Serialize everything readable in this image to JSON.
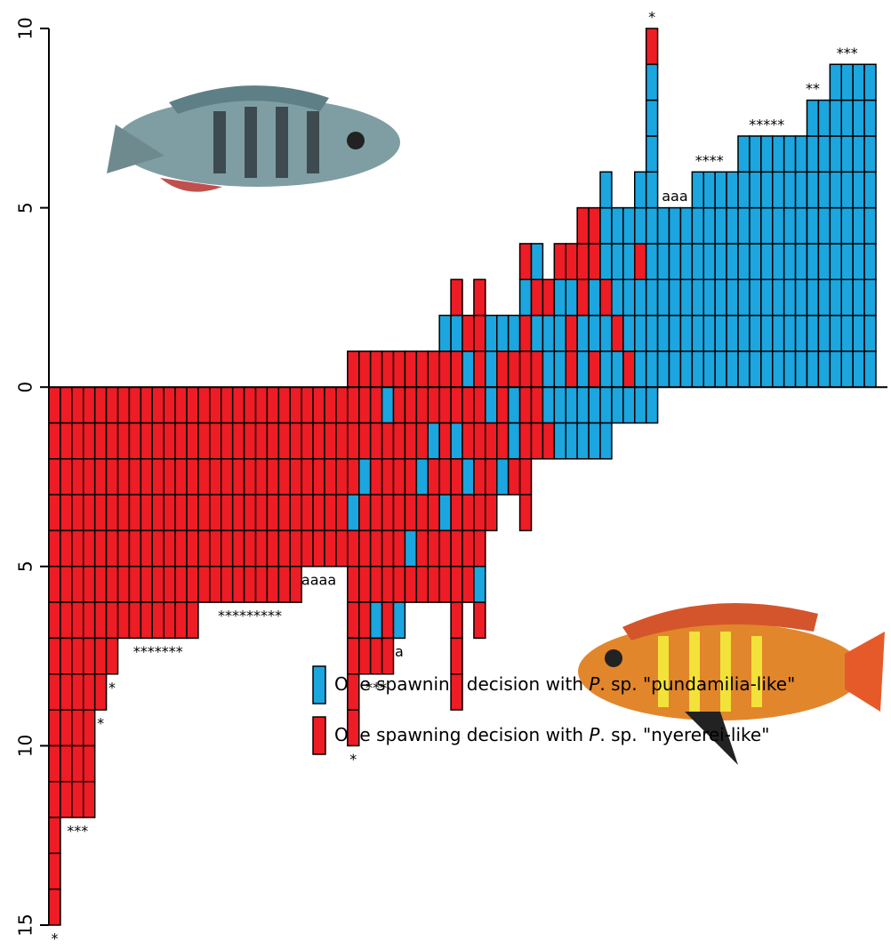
{
  "chart_data": {
    "type": "decision-columns",
    "series": [
      {
        "key": "b",
        "color": "#1ba6df",
        "name": [
          "One spawning decision with ",
          "P",
          ". sp. \"pundamilia-like\""
        ]
      },
      {
        "key": "r",
        "color": "#ee1c25",
        "name": [
          "One spawning decision with ",
          "P",
          ". sp. \"nyererei-like\""
        ]
      }
    ],
    "ylim": [
      -15,
      10
    ],
    "yticks": [
      10,
      5,
      0,
      {
        "value": -5,
        "label": "5"
      },
      {
        "value": -10,
        "label": "10"
      },
      {
        "value": -15,
        "label": "15"
      }
    ],
    "columns": [
      {
        "above": "",
        "below": "rrrrrrrrrrrrrrr",
        "label": "*",
        "label_at": "bottom"
      },
      {
        "above": "",
        "below": "rrrrrrrrrrrr"
      },
      {
        "above": "",
        "below": "rrrrrrrrrrrr",
        "label": "***",
        "label_at": "bottom"
      },
      {
        "above": "",
        "below": "rrrrrrrrrrrr"
      },
      {
        "above": "",
        "below": "rrrrrrrrr",
        "label": "*",
        "label_at": "bottom"
      },
      {
        "above": "",
        "below": "rrrrrrrr",
        "label": "*",
        "label_at": "bottom"
      },
      {
        "above": "",
        "below": "rrrrrrr"
      },
      {
        "above": "",
        "below": "rrrrrrr"
      },
      {
        "above": "",
        "below": "rrrrrrr"
      },
      {
        "above": "",
        "below": "rrrrrrr",
        "label": "*******",
        "label_at": "bottom"
      },
      {
        "above": "",
        "below": "rrrrrrr"
      },
      {
        "above": "",
        "below": "rrrrrrr"
      },
      {
        "above": "",
        "below": "rrrrrrr"
      },
      {
        "above": "",
        "below": "rrrrrr"
      },
      {
        "above": "",
        "below": "rrrrrr"
      },
      {
        "above": "",
        "below": "rrrrrr"
      },
      {
        "above": "",
        "below": "rrrrrr"
      },
      {
        "above": "",
        "below": "rrrrrr",
        "label": "*********",
        "label_at": "bottom"
      },
      {
        "above": "",
        "below": "rrrrrr"
      },
      {
        "above": "",
        "below": "rrrrrr"
      },
      {
        "above": "",
        "below": "rrrrrr"
      },
      {
        "above": "",
        "below": "rrrrrr"
      },
      {
        "above": "",
        "below": "rrrrr"
      },
      {
        "above": "",
        "below": "rrrrr",
        "label": "aaaa",
        "label_at": "bottom"
      },
      {
        "above": "",
        "below": "rrrrr"
      },
      {
        "above": "",
        "below": "rrrrr"
      },
      {
        "above": "r",
        "below": "rrrbrrrrrr",
        "label": "*",
        "label_at": "bottom"
      },
      {
        "above": "r",
        "below": "rrbrrrrr"
      },
      {
        "above": "r",
        "below": "rrrrrrbr",
        "label": "***",
        "label_at": "bottom"
      },
      {
        "above": "r",
        "below": "brrrrrrr"
      },
      {
        "above": "r",
        "below": "rrrrrrb",
        "label": "a",
        "label_at": "bottom"
      },
      {
        "above": "r",
        "below": "rrrrbr"
      },
      {
        "above": "r",
        "below": "rrbrrr"
      },
      {
        "above": "r",
        "below": "rbrrrr"
      },
      {
        "above": "rb",
        "below": "rrrbrr"
      },
      {
        "above": "rbr",
        "below": "rbrrrrrrr"
      },
      {
        "above": "br",
        "below": "rrbrrr"
      },
      {
        "above": "rrr",
        "below": "rrrrrbr"
      },
      {
        "above": "bb",
        "below": "brrr"
      },
      {
        "above": "rb",
        "below": "rrb"
      },
      {
        "above": "rb",
        "below": "bbr"
      },
      {
        "above": "rrbr",
        "below": "rrrr"
      },
      {
        "above": "rbrb",
        "below": "rr"
      },
      {
        "above": "bbr",
        "below": "br"
      },
      {
        "above": "bbbr",
        "below": "bb"
      },
      {
        "above": "rrbr",
        "below": "bb"
      },
      {
        "above": "bbrrr",
        "below": "bb"
      },
      {
        "above": "rbbrr",
        "below": "bb"
      },
      {
        "above": "bbrbbb",
        "below": "bb"
      },
      {
        "above": "brbbb",
        "below": "b"
      },
      {
        "above": "rbbbb",
        "below": "b"
      },
      {
        "above": "bbbrbb",
        "below": "b"
      },
      {
        "above": "bbbbbbbbbr",
        "below": "b",
        "label": "*",
        "label_at": "top"
      },
      {
        "above": "bbbbb",
        "below": ""
      },
      {
        "above": "bbbbb",
        "below": "",
        "label": "aaa",
        "label_at": "top"
      },
      {
        "above": "bbbbb",
        "below": ""
      },
      {
        "above": "bbbbbb",
        "below": ""
      },
      {
        "above": "bbbbbb",
        "below": "",
        "label": "****",
        "label_at": "top"
      },
      {
        "above": "bbbbbb",
        "below": ""
      },
      {
        "above": "bbbbbb",
        "below": ""
      },
      {
        "above": "bbbbbbb",
        "below": ""
      },
      {
        "above": "bbbbbbb",
        "below": ""
      },
      {
        "above": "bbbbbbb",
        "below": "",
        "label": "*****",
        "label_at": "top"
      },
      {
        "above": "bbbbbbb",
        "below": ""
      },
      {
        "above": "bbbbbbb",
        "below": ""
      },
      {
        "above": "bbbbbbb",
        "below": ""
      },
      {
        "above": "bbbbbbbb",
        "below": "",
        "label": "**",
        "label_at": "top"
      },
      {
        "above": "bbbbbbbb",
        "below": ""
      },
      {
        "above": "bbbbbbbbb",
        "below": ""
      },
      {
        "above": "bbbbbbbbb",
        "below": "",
        "label": "***",
        "label_at": "top"
      },
      {
        "above": "bbbbbbbbb",
        "below": ""
      },
      {
        "above": "bbbbbbbbb",
        "below": ""
      }
    ]
  }
}
